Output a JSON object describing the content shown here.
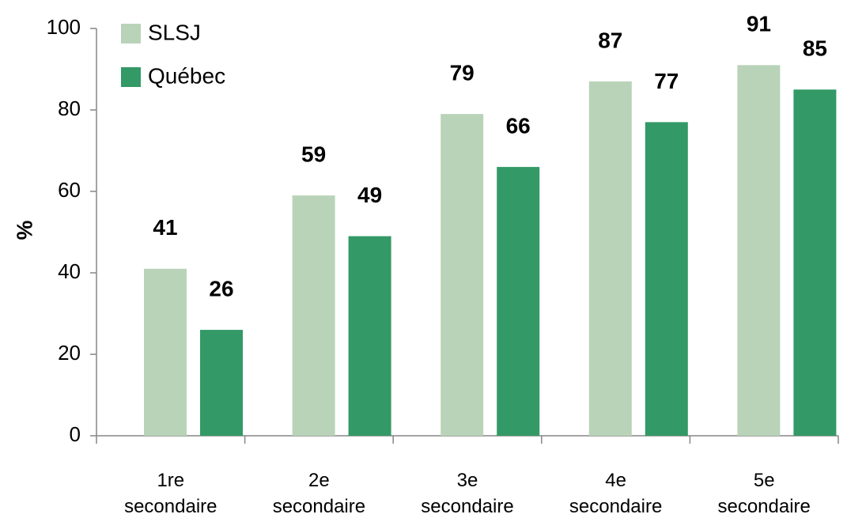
{
  "chart_data": {
    "type": "bar",
    "y_label": "%",
    "categories": [
      "1re secondaire",
      "2e secondaire",
      "3e secondaire",
      "4e secondaire",
      "5e secondaire"
    ],
    "series": [
      {
        "name": "SLSJ",
        "color": "#b9d3b9",
        "values": [
          41,
          59,
          79,
          87,
          91
        ]
      },
      {
        "name": "Québec",
        "color": "#339966",
        "values": [
          26,
          49,
          66,
          77,
          85
        ]
      }
    ],
    "ylim": [
      0,
      100
    ],
    "yticks": [
      0,
      20,
      40,
      60,
      80,
      100
    ],
    "legend": "upper left"
  }
}
